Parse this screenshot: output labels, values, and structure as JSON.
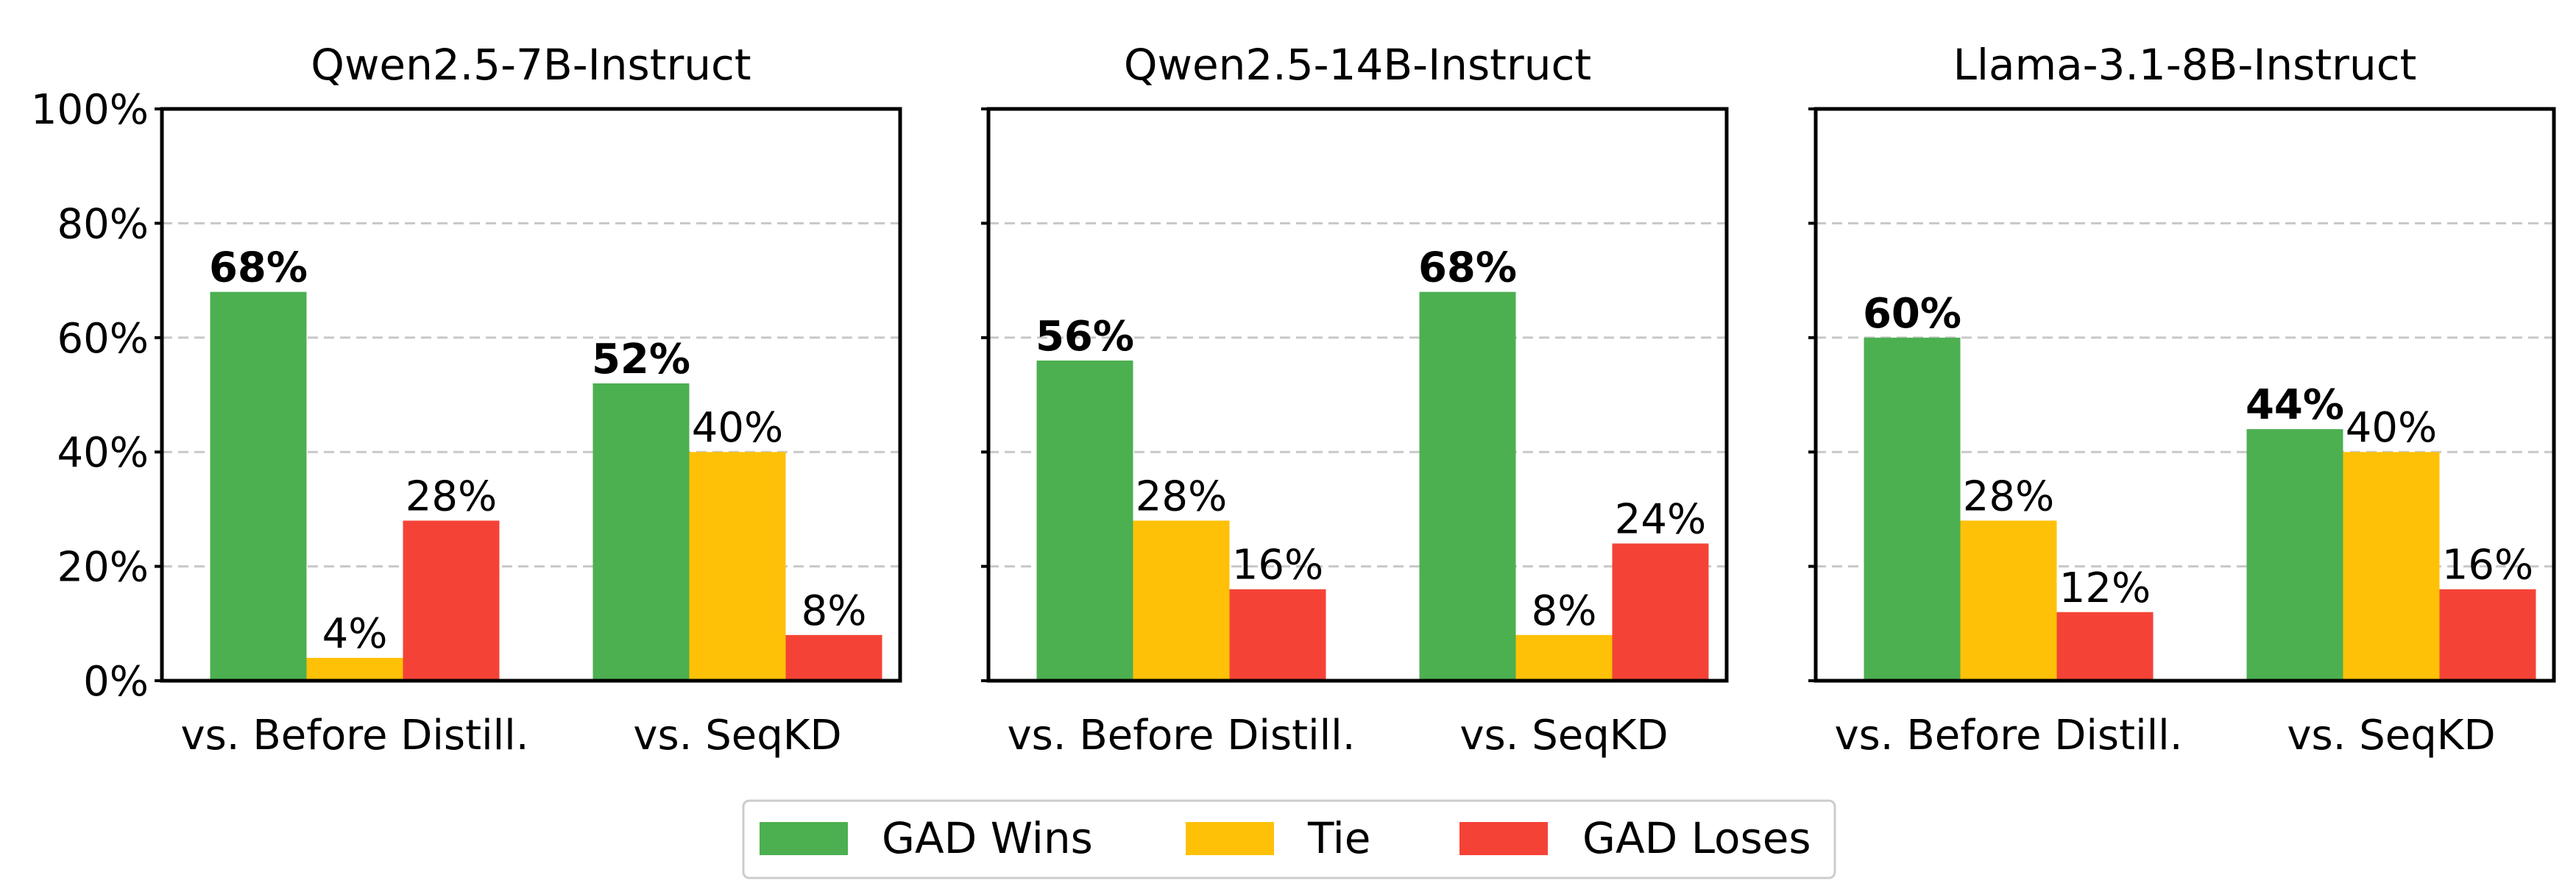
{
  "chart_data": {
    "type": "bar",
    "panels": [
      {
        "title": "Qwen2.5-7B-Instruct",
        "categories": [
          "vs. Before Distill.",
          "vs. SeqKD"
        ],
        "series": [
          {
            "name": "GAD Wins",
            "values": [
              68,
              52
            ]
          },
          {
            "name": "Tie",
            "values": [
              4,
              40
            ]
          },
          {
            "name": "GAD Loses",
            "values": [
              28,
              8
            ]
          }
        ],
        "value_labels": [
          [
            "68%",
            "4%",
            "28%"
          ],
          [
            "52%",
            "40%",
            "8%"
          ]
        ]
      },
      {
        "title": "Qwen2.5-14B-Instruct",
        "categories": [
          "vs. Before Distill.",
          "vs. SeqKD"
        ],
        "series": [
          {
            "name": "GAD Wins",
            "values": [
              56,
              68
            ]
          },
          {
            "name": "Tie",
            "values": [
              28,
              8
            ]
          },
          {
            "name": "GAD Loses",
            "values": [
              16,
              24
            ]
          }
        ],
        "value_labels": [
          [
            "56%",
            "28%",
            "16%"
          ],
          [
            "68%",
            "8%",
            "24%"
          ]
        ]
      },
      {
        "title": "Llama-3.1-8B-Instruct",
        "categories": [
          "vs. Before Distill.",
          "vs. SeqKD"
        ],
        "series": [
          {
            "name": "GAD Wins",
            "values": [
              60,
              44
            ]
          },
          {
            "name": "Tie",
            "values": [
              28,
              40
            ]
          },
          {
            "name": "GAD Loses",
            "values": [
              12,
              16
            ]
          }
        ],
        "value_labels": [
          [
            "60%",
            "28%",
            "12%"
          ],
          [
            "44%",
            "40%",
            "16%"
          ]
        ]
      }
    ],
    "series_names": [
      "GAD Wins",
      "Tie",
      "GAD Loses"
    ],
    "colors": [
      "#4caf50",
      "#ffc107",
      "#f44336"
    ],
    "ylim": [
      0,
      100
    ],
    "yticks": [
      0,
      20,
      40,
      60,
      80,
      100
    ],
    "ytick_labels": [
      "0%",
      "20%",
      "40%",
      "60%",
      "80%",
      "100%"
    ],
    "grid": "y-dashed",
    "legend_position": "bottom-center"
  }
}
